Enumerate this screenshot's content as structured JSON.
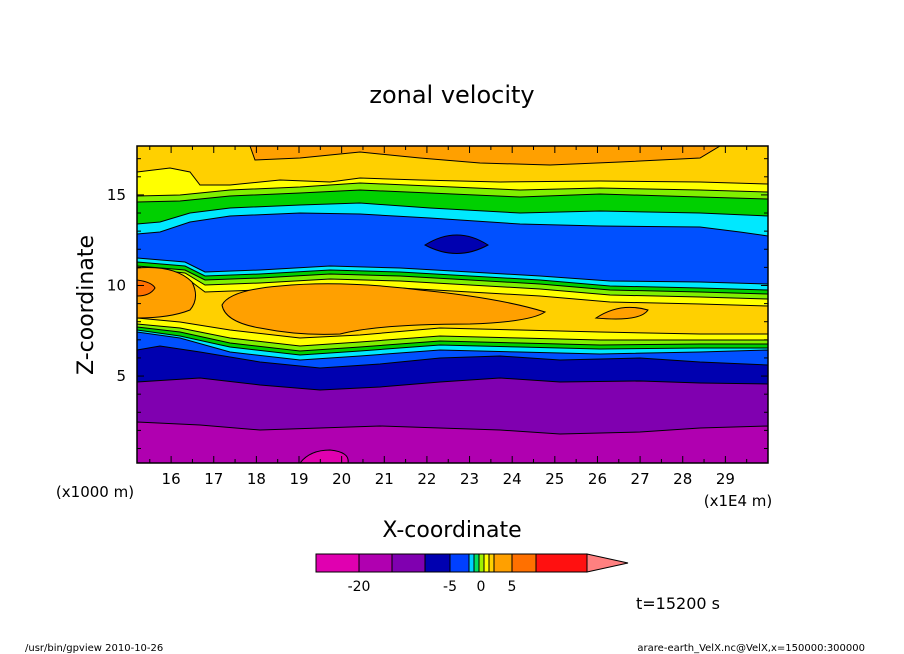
{
  "chart_data": {
    "type": "heatmap",
    "title": "zonal velocity",
    "xlabel": "X-coordinate",
    "ylabel": "Z-coordinate",
    "x_unit_left": "(x1000 m)",
    "x_unit_right": "(x1E4 m)",
    "x_ticks": [
      "16",
      "17",
      "18",
      "19",
      "20",
      "21",
      "22",
      "23",
      "24",
      "25",
      "26",
      "27",
      "28",
      "29"
    ],
    "y_ticks": [
      "5",
      "10",
      "15"
    ],
    "xlim": [
      15.2,
      30
    ],
    "ylim": [
      0.2,
      17.7
    ],
    "colorbar": {
      "labels": [
        "-20",
        "-5",
        "0",
        "5"
      ],
      "colors": [
        "#e000b0",
        "#b000b0",
        "#8000b0",
        "#0000b0",
        "#0040ff",
        "#00d0ff",
        "#00e060",
        "#a0f000",
        "#ffff00",
        "#ffd000",
        "#ffa000",
        "#ff7000",
        "#ff1010",
        "#ff8080"
      ]
    },
    "time_label": "t=15200 s",
    "bands": [
      {
        "name": "deep-negative",
        "color": "#e000b0"
      },
      {
        "name": "negative-purple",
        "color": "#b000b0"
      },
      {
        "name": "violet",
        "color": "#8000b0"
      },
      {
        "name": "navy",
        "color": "#0000b0"
      },
      {
        "name": "blue",
        "color": "#0040ff"
      },
      {
        "name": "cyan",
        "color": "#00e0ff"
      },
      {
        "name": "green",
        "color": "#00c060"
      },
      {
        "name": "lime",
        "color": "#80f000"
      },
      {
        "name": "yellow",
        "color": "#ffff00"
      },
      {
        "name": "gold",
        "color": "#ffd000"
      },
      {
        "name": "orange",
        "color": "#ffa000"
      },
      {
        "name": "red-orange",
        "color": "#ff7000"
      }
    ]
  },
  "footer": {
    "left": "/usr/bin/gpview   2010-10-26",
    "right": "arare-earth_VelX.nc@VelX,x=150000:300000"
  }
}
